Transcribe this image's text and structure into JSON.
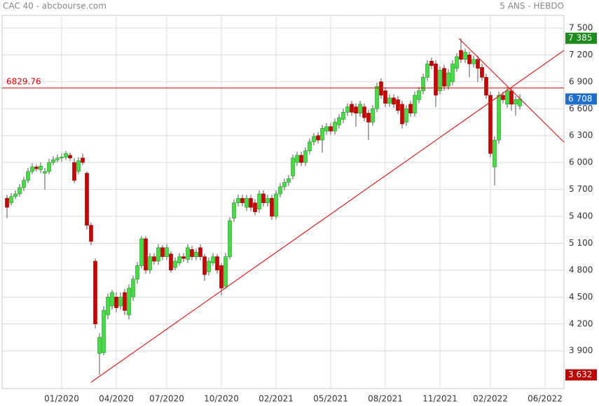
{
  "chart_data": {
    "type": "candlestick",
    "title": "CAC 40 - abcbourse.com",
    "subtitle": "5 ANS - HEBDO",
    "up_color": "#44dd44",
    "down_color": "#cc0000",
    "ylim": [
      3480,
      7640
    ],
    "yticks": [
      {
        "value": 7500,
        "label": "7 500"
      },
      {
        "value": 7200,
        "label": "7 200"
      },
      {
        "value": 6900,
        "label": "6 900"
      },
      {
        "value": 6600,
        "label": "6 600"
      },
      {
        "value": 6300,
        "label": "6 300"
      },
      {
        "value": 6000,
        "label": "6 000"
      },
      {
        "value": 5700,
        "label": "5 700"
      },
      {
        "value": 5400,
        "label": "5 400"
      },
      {
        "value": 5100,
        "label": "5 100"
      },
      {
        "value": 4800,
        "label": "4 800"
      },
      {
        "value": 4500,
        "label": "4 500"
      },
      {
        "value": 4200,
        "label": "4 200"
      },
      {
        "value": 3900,
        "label": "3 900"
      }
    ],
    "grid": true,
    "hline": 6829.76,
    "hline_color": "#dd0000",
    "markers": [
      {
        "value": 7385,
        "label": "7 385",
        "color": "#1d8c1d"
      },
      {
        "value": 6708,
        "label": "6 708",
        "color": "#1e6fd0"
      },
      {
        "value": 3632,
        "label": "3 632",
        "color": "#c00000"
      }
    ],
    "categories": [
      null,
      null,
      null,
      null,
      null,
      null,
      null,
      null,
      null,
      null,
      null,
      null,
      null,
      "01/2020",
      null,
      null,
      null,
      null,
      null,
      null,
      null,
      null,
      null,
      null,
      null,
      null,
      "04/2020",
      null,
      null,
      null,
      null,
      null,
      null,
      null,
      null,
      null,
      null,
      null,
      "07/2020",
      null,
      null,
      null,
      null,
      null,
      null,
      null,
      null,
      null,
      null,
      null,
      null,
      "10/2020",
      null,
      null,
      null,
      null,
      null,
      null,
      null,
      null,
      null,
      null,
      null,
      null,
      "02/2021",
      null,
      null,
      null,
      null,
      null,
      null,
      null,
      null,
      null,
      null,
      null,
      null,
      "05/2021",
      null,
      null,
      null,
      null,
      null,
      null,
      null,
      null,
      null,
      null,
      null,
      null,
      "08/2021",
      null,
      null,
      null,
      null,
      null,
      null,
      null,
      null,
      null,
      null,
      null,
      null,
      "11/2021",
      null,
      null,
      null,
      null,
      null,
      null,
      null,
      null,
      null,
      null,
      null,
      "02/2022",
      null,
      null,
      null,
      null,
      null,
      null,
      null,
      null,
      null,
      null,
      null,
      null,
      "06/2022",
      null,
      null,
      null,
      null
    ],
    "open": [
      5600,
      5550,
      5620,
      5650,
      5720,
      5800,
      5900,
      5950,
      5920,
      5880,
      5900,
      6000,
      6030,
      6050,
      6060,
      6080,
      6000,
      5900,
      6050,
      5880,
      5300,
      4900,
      3870,
      3880,
      4300,
      4400,
      4500,
      4400,
      4550,
      4300,
      4500,
      4700,
      4850,
      5150,
      4800,
      4950,
      4900,
      5050,
      4950,
      4980,
      4830,
      4880,
      4950,
      4920,
      5030,
      4950,
      5050,
      4950,
      4780,
      4880,
      4950,
      4850,
      4620,
      4950,
      5380,
      5550,
      5600,
      5500,
      5600,
      5550,
      5480,
      5650,
      5550,
      5600,
      5400,
      5650,
      5730,
      5780,
      5850,
      6000,
      6080,
      6000,
      6130,
      6230,
      6300,
      6250,
      6350,
      6400,
      6350,
      6420,
      6480,
      6560,
      6650,
      6620,
      6550,
      6620,
      6550,
      6450,
      6600,
      6900,
      6800,
      6660,
      6720,
      6700,
      6650,
      6450,
      6650,
      6550,
      6700,
      6800,
      6950,
      7130,
      7100,
      6800,
      7050,
      6850,
      6900,
      7050,
      7250,
      7150,
      7200,
      7100,
      7150,
      7060,
      6950,
      6750,
      5950,
      6250,
      6750,
      6650,
      6800,
      6650,
      6630,
      null,
      null,
      null,
      null,
      null,
      null,
      null,
      null,
      null,
      null
    ],
    "high": [
      5640,
      5660,
      5690,
      5760,
      5840,
      5940,
      5990,
      5980,
      6000,
      5940,
      6040,
      6070,
      6090,
      6100,
      6130,
      6110,
      6050,
      6060,
      6100,
      5900,
      5330,
      4930,
      4100,
      4400,
      4540,
      4580,
      4550,
      4550,
      4590,
      4640,
      4740,
      4890,
      5180,
      5180,
      4990,
      4990,
      5090,
      5080,
      5090,
      5010,
      4940,
      4990,
      4990,
      5090,
      5070,
      5040,
      5090,
      4980,
      4940,
      4990,
      4980,
      4880,
      4990,
      5390,
      5590,
      5640,
      5640,
      5640,
      5640,
      5590,
      5690,
      5690,
      5640,
      5640,
      5690,
      5770,
      5820,
      5860,
      6090,
      6120,
      6120,
      6170,
      6270,
      6330,
      6340,
      6420,
      6440,
      6440,
      6490,
      6540,
      6600,
      6660,
      6690,
      6660,
      6690,
      6660,
      6590,
      6640,
      6890,
      6940,
      6840,
      6760,
      6760,
      6740,
      6690,
      6640,
      6690,
      6790,
      6840,
      6990,
      7140,
      7170,
      7140,
      7070,
      7090,
      7040,
      7140,
      7220,
      7385,
      7270,
      7240,
      7190,
      7190,
      7100,
      6990,
      6790,
      6290,
      6790,
      6790,
      6840,
      6840,
      6740,
      6760,
      null,
      null,
      null,
      null,
      null,
      null,
      null,
      null,
      null,
      null
    ],
    "low": [
      5380,
      5520,
      5590,
      5620,
      5680,
      5770,
      5870,
      5900,
      5880,
      5700,
      5870,
      5970,
      6000,
      6010,
      6030,
      6020,
      5770,
      5870,
      5970,
      5250,
      5080,
      4150,
      3632,
      3850,
      4250,
      4360,
      4330,
      4360,
      4300,
      4250,
      4460,
      4650,
      4820,
      4760,
      4760,
      4860,
      4860,
      4910,
      4910,
      4770,
      4800,
      4850,
      4890,
      4880,
      4910,
      4910,
      4910,
      4680,
      4740,
      4850,
      4760,
      4520,
      4590,
      4920,
      5340,
      5510,
      5510,
      5460,
      5460,
      5410,
      5440,
      5510,
      5510,
      5360,
      5370,
      5610,
      5690,
      5740,
      5810,
      5960,
      5960,
      5960,
      6090,
      6190,
      6210,
      6110,
      6310,
      6310,
      6310,
      6380,
      6440,
      6520,
      6520,
      6400,
      6510,
      6460,
      6250,
      6410,
      6560,
      6710,
      6620,
      6620,
      6610,
      6540,
      6380,
      6410,
      6510,
      6510,
      6660,
      6760,
      6910,
      7040,
      6620,
      6760,
      6800,
      6810,
      6860,
      7010,
      7110,
      7110,
      6950,
      7060,
      6900,
      6910,
      6710,
      6060,
      5743,
      6210,
      6660,
      6610,
      6580,
      6520,
      6590,
      null,
      null,
      null,
      null,
      null,
      null,
      null,
      null,
      null,
      null
    ],
    "close": [
      5500,
      5620,
      5650,
      5720,
      5800,
      5900,
      5950,
      5930,
      5960,
      5900,
      6000,
      6030,
      6050,
      6060,
      6100,
      6050,
      5800,
      6020,
      6000,
      5300,
      5120,
      4200,
      4050,
      4350,
      4500,
      4550,
      4380,
      4500,
      4350,
      4600,
      4700,
      4850,
      5150,
      4800,
      4950,
      4900,
      5050,
      4950,
      5050,
      4800,
      4900,
      4950,
      4930,
      5050,
      4950,
      5000,
      4950,
      4750,
      4900,
      4950,
      4800,
      4600,
      4950,
      5350,
      5550,
      5600,
      5550,
      5600,
      5500,
      5450,
      5650,
      5550,
      5600,
      5400,
      5650,
      5730,
      5780,
      5820,
      6050,
      6080,
      6000,
      6130,
      6230,
      6290,
      6250,
      6380,
      6400,
      6350,
      6450,
      6500,
      6560,
      6620,
      6560,
      6550,
      6650,
      6500,
      6450,
      6600,
      6850,
      6750,
      6660,
      6720,
      6650,
      6580,
      6430,
      6600,
      6550,
      6750,
      6800,
      6950,
      7100,
      7080,
      6750,
      7030,
      6850,
      7000,
      7100,
      7180,
      7150,
      7230,
      7100,
      7150,
      7050,
      6950,
      6750,
      6100,
      6250,
      6750,
      6700,
      6800,
      6650,
      6700,
      6708,
      null,
      null,
      null,
      null,
      null,
      null,
      null,
      null,
      null,
      null
    ]
  }
}
